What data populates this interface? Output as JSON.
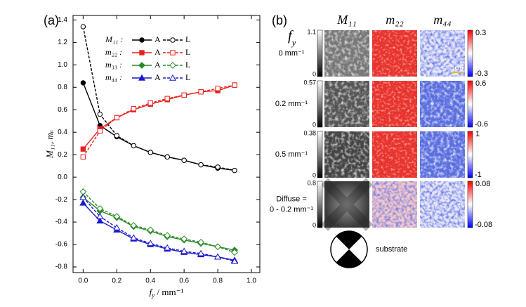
{
  "chart_data": {
    "type": "line",
    "panel_label": "(a)",
    "xlabel": {
      "symbol": "f",
      "sub": "y",
      "unit": " / mm⁻¹"
    },
    "ylabel": "M₁₁, mᵢᵢ",
    "x": [
      0,
      0.1,
      0.2,
      0.3,
      0.4,
      0.5,
      0.6,
      0.7,
      0.8,
      0.9
    ],
    "xlim": [
      -0.06,
      1.05
    ],
    "ylim": [
      -0.85,
      1.44
    ],
    "xticks": [
      {
        "value": 0,
        "label": "0.0"
      },
      0.2,
      0.4,
      0.6,
      0.8,
      {
        "value": 1,
        "label": "1.0"
      }
    ],
    "yticks": [
      -0.8,
      -0.6,
      -0.4,
      -0.2,
      {
        "value": 0,
        "label": "0.0"
      },
      0.2,
      0.4,
      0.6,
      0.8,
      {
        "value": 1,
        "label": "1.0"
      },
      1.2,
      1.4
    ],
    "groups": [
      {
        "label": "M₁₁ :",
        "color": "#000000",
        "marker": "circle",
        "series": [
          {
            "name": "A",
            "style": "solid",
            "fill": "filled",
            "values": [
              0.84,
              0.46,
              0.36,
              0.28,
              0.22,
              0.18,
              0.15,
              0.11,
              0.08,
              0.06
            ]
          },
          {
            "name": "L",
            "style": "dashed",
            "fill": "open",
            "values": [
              1.34,
              0.56,
              0.37,
              0.28,
              0.22,
              0.18,
              0.15,
              0.11,
              0.09,
              0.06
            ]
          }
        ]
      },
      {
        "label": "m₂₂ :",
        "color": "#e8211c",
        "marker": "square",
        "series": [
          {
            "name": "A",
            "style": "solid",
            "fill": "filled",
            "values": [
              0.25,
              0.43,
              0.53,
              0.6,
              0.65,
              0.69,
              0.73,
              0.76,
              0.77,
              0.82
            ]
          },
          {
            "name": "L",
            "style": "dashed",
            "fill": "open",
            "values": [
              0.18,
              0.41,
              0.53,
              0.61,
              0.66,
              0.7,
              0.73,
              0.76,
              0.79,
              0.82
            ]
          }
        ]
      },
      {
        "label": "m₃₃ :",
        "color": "#2a8a2a",
        "marker": "diamond",
        "series": [
          {
            "name": "A",
            "style": "solid",
            "fill": "filled",
            "values": [
              -0.18,
              -0.3,
              -0.36,
              -0.44,
              -0.48,
              -0.53,
              -0.56,
              -0.59,
              -0.62,
              -0.65
            ]
          },
          {
            "name": "L",
            "style": "dashed",
            "fill": "open",
            "values": [
              -0.13,
              -0.28,
              -0.35,
              -0.43,
              -0.47,
              -0.52,
              -0.55,
              -0.58,
              -0.62,
              -0.67
            ]
          }
        ]
      },
      {
        "label": "m₄₄ :",
        "color": "#1a1acc",
        "marker": "triangle",
        "series": [
          {
            "name": "A",
            "style": "solid",
            "fill": "filled",
            "values": [
              -0.23,
              -0.39,
              -0.47,
              -0.55,
              -0.6,
              -0.64,
              -0.67,
              -0.69,
              -0.71,
              -0.74
            ]
          },
          {
            "name": "L",
            "style": "dashed",
            "fill": "open",
            "values": [
              -0.18,
              -0.35,
              -0.45,
              -0.54,
              -0.59,
              -0.63,
              -0.66,
              -0.68,
              -0.71,
              -0.75
            ]
          }
        ]
      }
    ]
  },
  "panel_b": {
    "panel_label": "(b)",
    "row_header": {
      "symbol": "f",
      "sub": "y"
    },
    "columns": [
      "M₁₁",
      "m₂₂",
      "m₄₄"
    ],
    "rows": [
      {
        "label": [
          "0 mm⁻¹"
        ],
        "gray_range": [
          0,
          1.1
        ],
        "color_range": [
          -0.3,
          0.3
        ]
      },
      {
        "label": [
          "0.2 mm⁻¹"
        ],
        "gray_range": [
          0,
          0.57
        ],
        "color_range": [
          -0.6,
          0.6
        ]
      },
      {
        "label": [
          "0.5 mm⁻¹"
        ],
        "gray_range": [
          0,
          0.38
        ],
        "color_range": [
          -1,
          1
        ]
      },
      {
        "label": [
          "Diffuse =",
          "0 - 0.2 mm⁻¹"
        ],
        "gray_range": [
          0,
          0.8
        ],
        "color_range": [
          -0.08,
          0.08
        ]
      }
    ],
    "scale_bar": "1cm",
    "substrate": "substrate"
  }
}
